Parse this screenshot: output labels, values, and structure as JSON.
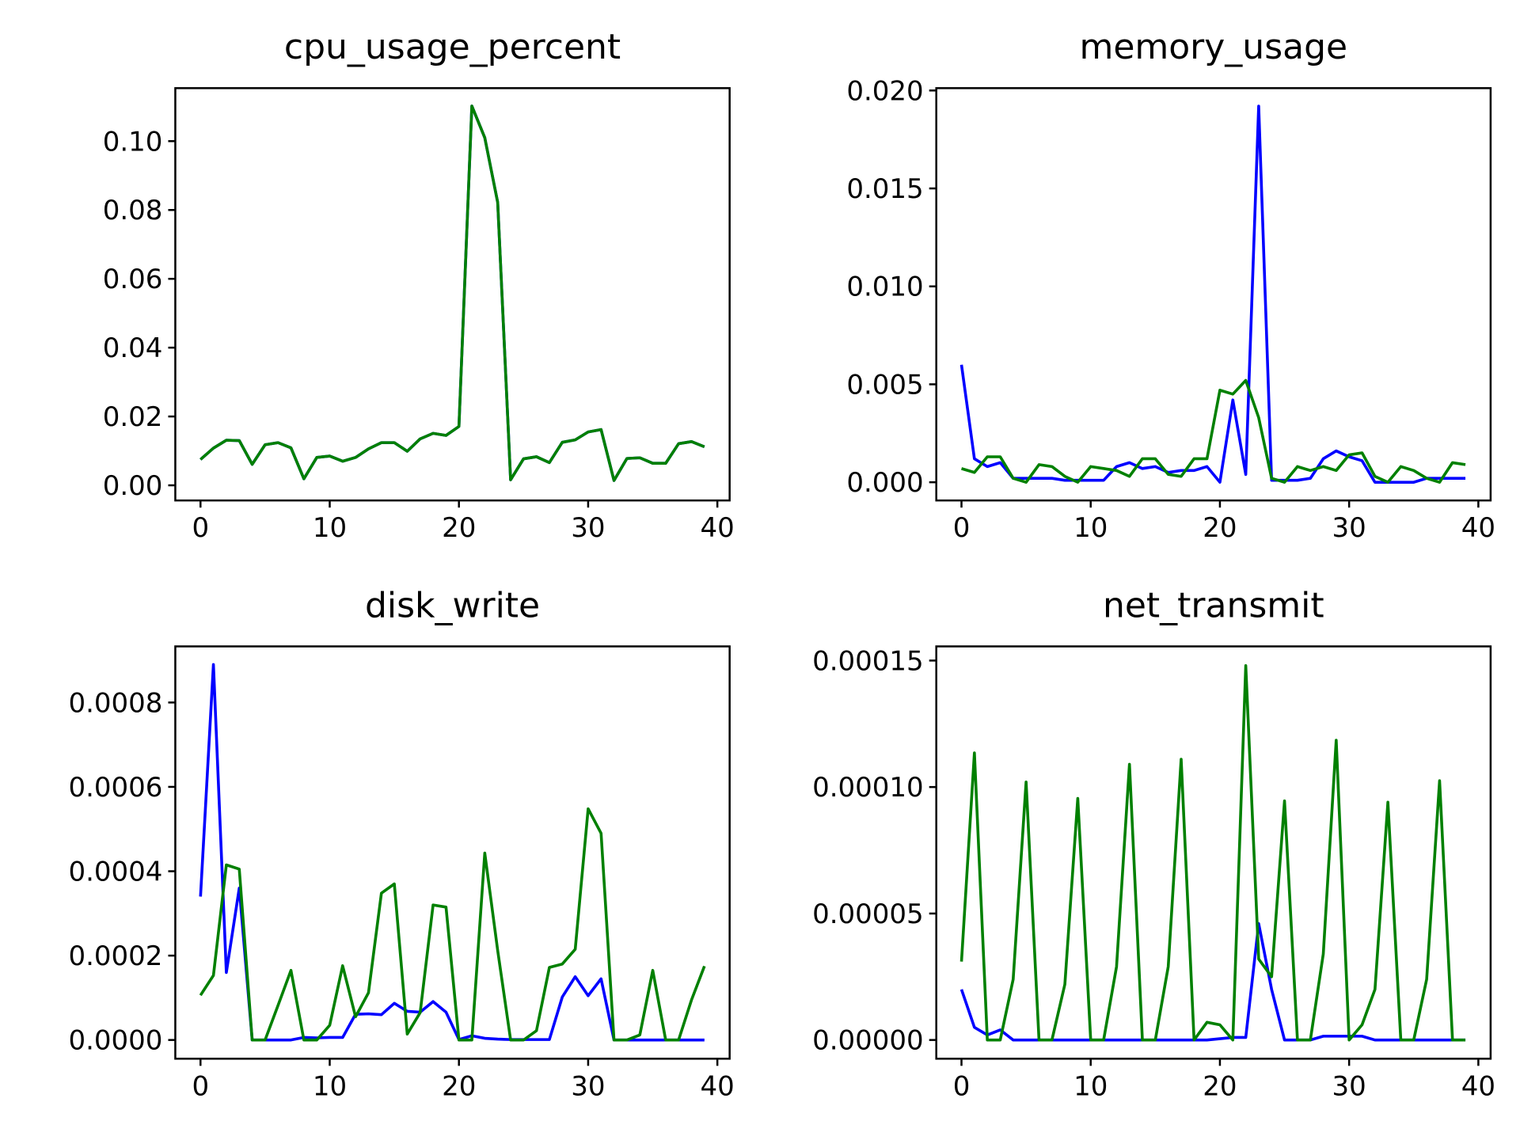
{
  "chart_data": [
    {
      "type": "line",
      "title": "cpu_usage_percent",
      "xlabel": "",
      "ylabel": "",
      "xlim": [
        -1.95,
        40.95
      ],
      "ylim": [
        -0.0044,
        0.1154
      ],
      "x_ticks": [
        "0",
        "10",
        "20",
        "30",
        "40"
      ],
      "y_ticks": [
        "0.00",
        "0.02",
        "0.04",
        "0.06",
        "0.08",
        "0.10"
      ],
      "grid": false,
      "legend": "none",
      "series": [
        {
          "color": "#0000ff",
          "values": [
            0.0075,
            0.0108,
            0.0131,
            0.013,
            0.0061,
            0.0118,
            0.0124,
            0.0109,
            0.0019,
            0.0081,
            0.0085,
            0.007,
            0.0081,
            0.0106,
            0.0124,
            0.0124,
            0.0099,
            0.0135,
            0.0151,
            0.0145,
            0.0171,
            0.1102,
            0.101,
            0.0822,
            0.0016,
            0.0077,
            0.0083,
            0.0066,
            0.0125,
            0.0132,
            0.0155,
            0.0162,
            0.0014,
            0.0078,
            0.008,
            0.0064,
            0.0064,
            0.0121,
            0.0127,
            0.0112
          ]
        },
        {
          "color": "#008000",
          "values": [
            0.0075,
            0.0108,
            0.0131,
            0.013,
            0.0061,
            0.0118,
            0.0124,
            0.0109,
            0.0019,
            0.0081,
            0.0085,
            0.007,
            0.0081,
            0.0106,
            0.0124,
            0.0124,
            0.0099,
            0.0135,
            0.0151,
            0.0145,
            0.0171,
            0.1102,
            0.101,
            0.0822,
            0.0016,
            0.0077,
            0.0083,
            0.0066,
            0.0125,
            0.0132,
            0.0155,
            0.0162,
            0.0014,
            0.0078,
            0.008,
            0.0064,
            0.0064,
            0.0121,
            0.0127,
            0.0112
          ]
        }
      ]
    },
    {
      "type": "line",
      "title": "memory_usage",
      "xlabel": "",
      "ylabel": "",
      "xlim": [
        -1.95,
        40.95
      ],
      "ylim": [
        -0.00093,
        0.02012
      ],
      "x_ticks": [
        "0",
        "10",
        "20",
        "30",
        "40"
      ],
      "y_ticks": [
        "0.000",
        "0.005",
        "0.010",
        "0.015",
        "0.020"
      ],
      "grid": false,
      "legend": "none",
      "series": [
        {
          "color": "#0000ff",
          "values": [
            0.006,
            0.0012,
            0.0008,
            0.001,
            0.0002,
            0.0002,
            0.0002,
            0.0002,
            0.0001,
            0.0001,
            0.0001,
            0.0001,
            0.0008,
            0.001,
            0.0007,
            0.0008,
            0.0005,
            0.0006,
            0.0006,
            0.0008,
            0.0,
            0.0042,
            0.0004,
            0.0192,
            0.0001,
            0.0001,
            0.0001,
            0.0002,
            0.0012,
            0.0016,
            0.0013,
            0.0011,
            0.0,
            0.0,
            0.0,
            0.0,
            0.0002,
            0.0002,
            0.0002,
            0.0002
          ]
        },
        {
          "color": "#008000",
          "values": [
            0.0007,
            0.0005,
            0.0013,
            0.0013,
            0.0002,
            0.0,
            0.0009,
            0.0008,
            0.0003,
            0.0,
            0.0008,
            0.0007,
            0.0006,
            0.0003,
            0.0012,
            0.0012,
            0.0004,
            0.0003,
            0.0012,
            0.0012,
            0.0047,
            0.0045,
            0.0052,
            0.0033,
            0.0002,
            0.0,
            0.0008,
            0.0006,
            0.0008,
            0.0006,
            0.0014,
            0.0015,
            0.0003,
            0.0,
            0.0008,
            0.0006,
            0.0002,
            0.0,
            0.001,
            0.0009
          ]
        }
      ]
    },
    {
      "type": "line",
      "title": "disk_write",
      "xlabel": "",
      "ylabel": "",
      "xlim": [
        -1.95,
        40.95
      ],
      "ylim": [
        -4.44e-05,
        0.000933
      ],
      "x_ticks": [
        "0",
        "10",
        "20",
        "30",
        "40"
      ],
      "y_ticks": [
        "0.0000",
        "0.0002",
        "0.0004",
        "0.0006",
        "0.0008"
      ],
      "grid": false,
      "legend": "none",
      "series": [
        {
          "color": "#0000ff",
          "values": [
            0.00034,
            0.00089,
            0.00016,
            0.00036,
            0.0,
            0.0,
            0.0,
            0.0,
            6e-06,
            5e-06,
            6e-06,
            6e-06,
            6.1e-05,
            6.2e-05,
            6e-05,
            8.7e-05,
            6.8e-05,
            6.6e-05,
            9.1e-05,
            6.6e-05,
            1e-06,
            1e-05,
            4e-06,
            2e-06,
            1e-06,
            1e-06,
            1e-06,
            1e-06,
            0.000102,
            0.00015,
            0.000105,
            0.000145,
            0.0,
            0.0,
            0.0,
            0.0,
            0.0,
            0.0,
            0.0,
            0.0
          ]
        },
        {
          "color": "#008000",
          "values": [
            0.000106,
            0.000153,
            0.000415,
            0.000405,
            0.0,
            0.0,
            8.2e-05,
            0.000165,
            0.0,
            0.0,
            3.5e-05,
            0.000176,
            5.5e-05,
            0.000112,
            0.000348,
            0.00037,
            1.4e-05,
            6.5e-05,
            0.00032,
            0.000315,
            0.0,
            0.0,
            0.000443,
            0.000212,
            0.0,
            0.0,
            2.2e-05,
            0.000172,
            0.00018,
            0.000215,
            0.000548,
            0.00049,
            0.0,
            0.0,
            1.2e-05,
            0.000165,
            0.0,
            0.0,
            9.5e-05,
            0.000175
          ]
        }
      ]
    },
    {
      "type": "line",
      "title": "net_transmit",
      "xlabel": "",
      "ylabel": "",
      "xlim": [
        -1.95,
        40.95
      ],
      "ylim": [
        -7.4e-06,
        0.0001556
      ],
      "x_ticks": [
        "0",
        "10",
        "20",
        "30",
        "40"
      ],
      "y_ticks": [
        "0.00000",
        "0.00005",
        "0.00010",
        "0.00015"
      ],
      "grid": false,
      "legend": "none",
      "series": [
        {
          "color": "#0000ff",
          "values": [
            2e-05,
            5e-06,
            2e-06,
            4e-06,
            0.0,
            0.0,
            0.0,
            0.0,
            0.0,
            0.0,
            0.0,
            0.0,
            0.0,
            0.0,
            0.0,
            0.0,
            0.0,
            0.0,
            0.0,
            0.0,
            5e-07,
            1e-06,
            1e-06,
            4.6e-05,
            2e-05,
            0.0,
            0.0,
            0.0,
            1.5e-06,
            1.5e-06,
            1.5e-06,
            1.5e-06,
            0.0,
            0.0,
            0.0,
            0.0,
            0.0,
            0.0,
            0.0,
            0.0
          ]
        },
        {
          "color": "#008000",
          "values": [
            3.1e-05,
            0.0001135,
            0.0,
            0.0,
            2.4e-05,
            0.000102,
            0.0,
            0.0,
            2.2e-05,
            9.55e-05,
            0.0,
            0.0,
            2.9e-05,
            0.000109,
            0.0,
            0.0,
            2.9e-05,
            0.000111,
            0.0,
            7e-06,
            6e-06,
            0.0,
            0.000148,
            3.2e-05,
            2.5e-05,
            9.45e-05,
            0.0,
            0.0,
            3.4e-05,
            0.0001185,
            0.0,
            6e-06,
            2e-05,
            9.4e-05,
            0.0,
            0.0,
            2.4e-05,
            0.0001025,
            0.0,
            0.0
          ]
        }
      ]
    }
  ]
}
